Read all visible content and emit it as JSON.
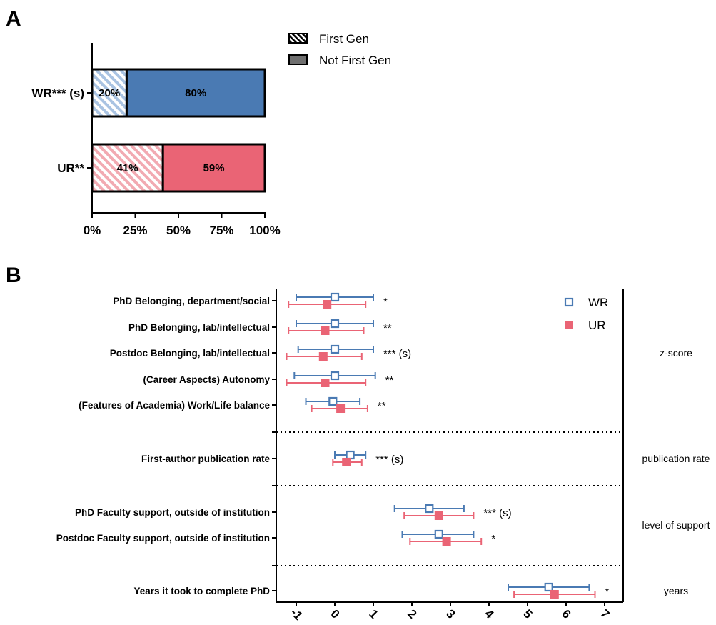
{
  "panel_a": {
    "letter": "A",
    "legend": [
      {
        "label": "First Gen",
        "pattern": "hatch"
      },
      {
        "label": "Not First Gen",
        "pattern": "solid"
      }
    ]
  },
  "panel_b": {
    "letter": "B",
    "legend": [
      {
        "label": "WR",
        "marker": "open-square",
        "color": "#4a7ab3"
      },
      {
        "label": "UR",
        "marker": "filled-square",
        "color": "#ea6475"
      }
    ]
  },
  "colors": {
    "wr": "#4a7ab3",
    "wr_light": "#a9c3e2",
    "ur": "#ea6475",
    "ur_light": "#f2aab2"
  },
  "chart_data": [
    {
      "type": "bar",
      "orientation": "horizontal",
      "stacked": true,
      "categories": [
        "WR*** (s)",
        "UR**"
      ],
      "category_group": [
        "wr",
        "ur"
      ],
      "series": [
        {
          "name": "First Gen",
          "values": [
            20,
            41
          ],
          "labels": [
            "20%",
            "41%"
          ]
        },
        {
          "name": "Not First Gen",
          "values": [
            80,
            59
          ],
          "labels": [
            "80%",
            "59%"
          ]
        }
      ],
      "xlim": [
        0,
        100
      ],
      "xticks": [
        0,
        25,
        50,
        75,
        100
      ],
      "xtick_labels": [
        "0%",
        "25%",
        "50%",
        "75%",
        "100%"
      ],
      "legend_position": "top-right"
    },
    {
      "type": "scatter",
      "subtype": "dot-and-whisker",
      "orientation": "horizontal",
      "xlim": [
        -1.5,
        7.5
      ],
      "xticks": [
        -1,
        0,
        1,
        2,
        3,
        4,
        5,
        6,
        7
      ],
      "xtick_labels": [
        "-1",
        "0",
        "1",
        "2",
        "3",
        "4",
        "5",
        "6",
        "7"
      ],
      "rows": [
        {
          "label": "PhD Belonging, department/social",
          "sig": "*",
          "wr": [
            0.0,
            -1.0,
            1.0
          ],
          "ur": [
            -0.2,
            -1.2,
            0.8
          ]
        },
        {
          "label": "PhD Belonging, lab/intellectual",
          "sig": "**",
          "wr": [
            0.0,
            -1.0,
            1.0
          ],
          "ur": [
            -0.25,
            -1.2,
            0.75
          ]
        },
        {
          "label": "Postdoc Belonging, lab/intellectual",
          "sig": "*** (s)",
          "wr": [
            0.0,
            -0.95,
            1.0
          ],
          "ur": [
            -0.3,
            -1.25,
            0.7
          ]
        },
        {
          "label": "(Career Aspects) Autonomy",
          "sig": "**",
          "wr": [
            0.0,
            -1.05,
            1.05
          ],
          "ur": [
            -0.25,
            -1.25,
            0.8
          ]
        },
        {
          "label": "(Features of Academia) Work/Life balance",
          "sig": "**",
          "wr": [
            -0.05,
            -0.75,
            0.65
          ],
          "ur": [
            0.15,
            -0.6,
            0.85
          ]
        },
        {
          "label": "First-author publication rate",
          "sig": "*** (s)",
          "wr": [
            0.4,
            0.0,
            0.8
          ],
          "ur": [
            0.3,
            -0.05,
            0.7
          ]
        },
        {
          "label": "PhD Faculty support, outside of institution",
          "sig": "*** (s)",
          "wr": [
            2.45,
            1.55,
            3.35
          ],
          "ur": [
            2.7,
            1.8,
            3.6
          ]
        },
        {
          "label": "Postdoc Faculty support, outside of institution",
          "sig": "*",
          "wr": [
            2.7,
            1.75,
            3.6
          ],
          "ur": [
            2.9,
            1.95,
            3.8
          ]
        },
        {
          "label": "Years it took to complete PhD",
          "sig": "*",
          "wr": [
            5.55,
            4.5,
            6.6
          ],
          "ur": [
            5.7,
            4.65,
            6.75
          ]
        }
      ],
      "value_order": "point, lower, upper",
      "groups": [
        {
          "label": "z-score",
          "rows": [
            0,
            1,
            2,
            3,
            4
          ]
        },
        {
          "label": "publication rate",
          "rows": [
            5
          ]
        },
        {
          "label": "level of support",
          "rows": [
            6,
            7
          ]
        },
        {
          "label": "years",
          "rows": [
            8
          ]
        }
      ],
      "separators": "dotted",
      "legend_position": "top-right"
    }
  ]
}
